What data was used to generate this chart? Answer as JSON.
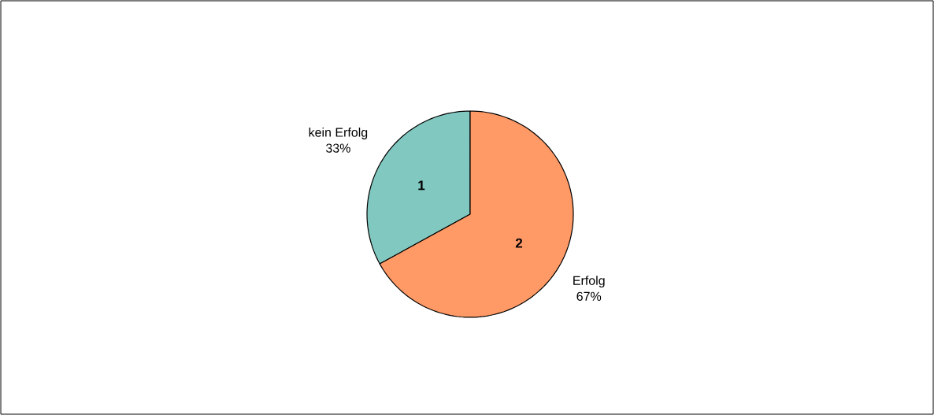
{
  "chart_data": {
    "type": "pie",
    "categories": [
      "kein Erfolg",
      "Erfolg"
    ],
    "values": [
      33,
      67
    ],
    "colors": [
      "#80c8c0",
      "#ff9966"
    ],
    "value_labels": [
      "33%",
      "67%"
    ],
    "annotations": [
      {
        "text": "1",
        "x": "kein Erfolg"
      },
      {
        "text": "2",
        "x": "Erfolg"
      }
    ]
  }
}
